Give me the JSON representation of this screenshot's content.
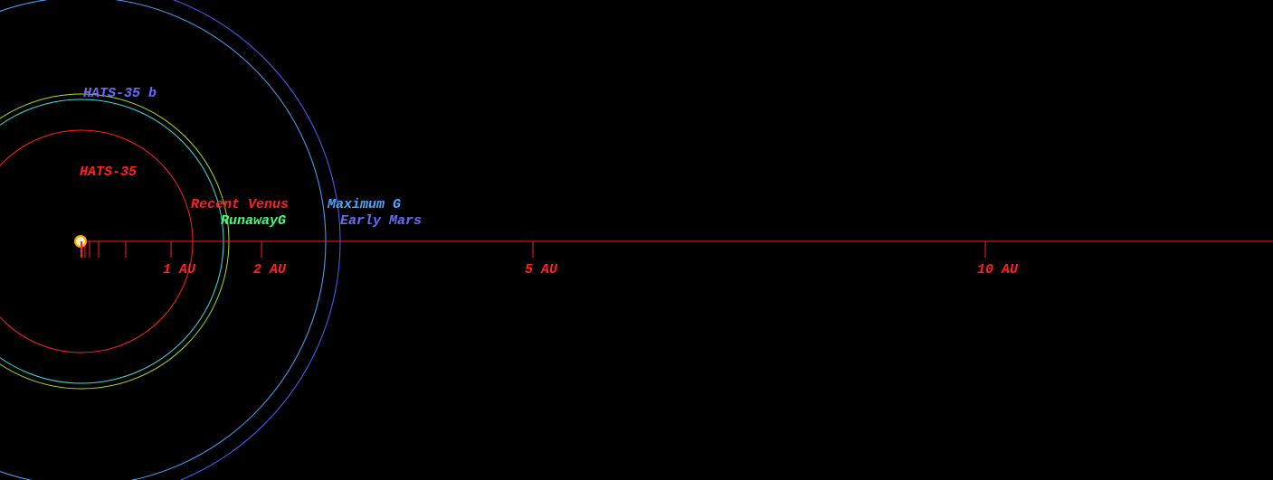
{
  "star": {
    "label": "HATS-35"
  },
  "planet": {
    "label": "HATS-35 b"
  },
  "zones": [
    {
      "label": "Recent Venus"
    },
    {
      "label": "RunawayG"
    },
    {
      "label": "Maximum G"
    },
    {
      "label": "Early Mars"
    }
  ],
  "scale": {
    "labels": [
      "1 AU",
      "2 AU",
      "5 AU",
      "10 AU"
    ]
  }
}
